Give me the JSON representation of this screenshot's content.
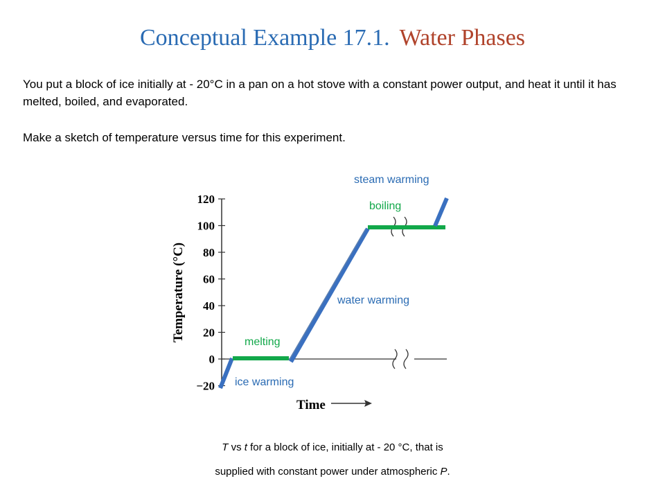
{
  "title": {
    "part1": "Conceptual Example 17.1.",
    "part2": "Water Phases"
  },
  "paragraphs": [
    "You put a block of ice initially at  - 20°C in a pan on a hot stove with a constant power output, and heat it until it has melted, boiled,  and evaporated.",
    "Make a sketch of temperature versus time for this experiment."
  ],
  "caption": {
    "line1_T": "T",
    "line1_vs": " vs ",
    "line1_t": "t",
    "line1_rest": "  for a block of ice, initially at  - 20 °C, that is",
    "line2_main": "supplied with constant power under atmospheric ",
    "line2_P": "P",
    "line2_end": "."
  },
  "colors": {
    "title_blue": "#2a6bb3",
    "title_red": "#b0432b",
    "warming": "#3a70c0",
    "phase_change": "#12a84a",
    "label_green": "#12a84a",
    "label_blue": "#2a6bb3"
  },
  "chart_data": {
    "type": "line",
    "ylabel": "Temperature (°C)",
    "xlabel": "Time",
    "yticks": [
      120,
      100,
      80,
      60,
      40,
      20,
      0,
      -20
    ],
    "ylim": [
      -20,
      120
    ],
    "grid": false,
    "segments": [
      {
        "name": "ice warming",
        "phase": "warming",
        "points": [
          [
            0,
            -20
          ],
          [
            1,
            0
          ]
        ]
      },
      {
        "name": "melting",
        "phase": "phase_change",
        "points": [
          [
            1,
            0
          ],
          [
            4,
            0
          ]
        ]
      },
      {
        "name": "water warming",
        "phase": "warming",
        "points": [
          [
            4,
            0
          ],
          [
            9.5,
            100
          ]
        ]
      },
      {
        "name": "boiling",
        "phase": "phase_change",
        "points": [
          [
            9.5,
            100
          ],
          [
            14.5,
            100
          ]
        ]
      },
      {
        "name": "steam warming",
        "phase": "warming",
        "points": [
          [
            13.8,
            100
          ],
          [
            14.6,
            120
          ]
        ]
      }
    ],
    "annotations": [
      "steam warming",
      "boiling",
      "water warming",
      "melting",
      "ice warming"
    ]
  }
}
